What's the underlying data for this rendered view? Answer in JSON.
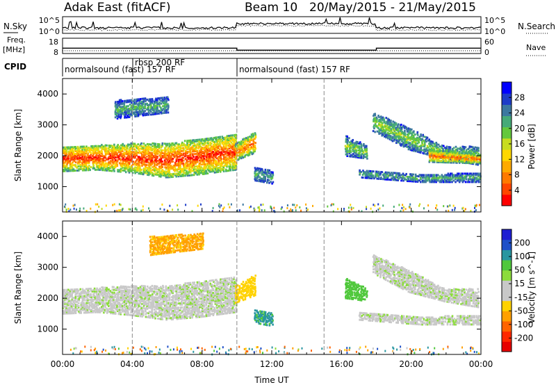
{
  "header": {
    "station": "Adak East (fitACF)",
    "beam": "Beam 10",
    "dates": "20/May/2015 - 21/May/2015"
  },
  "noise_panel": {
    "left_label": "N.Sky",
    "right_label": "N.Search",
    "left_ticks": [
      "10^5",
      "10^0"
    ],
    "right_ticks": [
      "10^5",
      "10^0"
    ]
  },
  "freq_panel": {
    "left_label_1": "Freq.",
    "left_label_2": "[MHz]",
    "right_label": "Nave",
    "left_ticks": [
      "18",
      "8"
    ],
    "right_ticks": [
      "60",
      "0"
    ],
    "freq_steps": [
      {
        "t0": 0,
        "t1": 10,
        "freq": 11.5
      },
      {
        "t0": 10,
        "t1": 18,
        "freq": 10.2
      },
      {
        "t0": 18,
        "t1": 24,
        "freq": 11.5
      }
    ]
  },
  "cpid_panel": {
    "label": "CPID",
    "segments": [
      {
        "t": 0,
        "text": "normalsound (fast) 157 RF"
      },
      {
        "t": 4,
        "text": "rbsp 200 RF"
      },
      {
        "t": 4,
        "text": "157 RF"
      },
      {
        "t": 10,
        "text": "normalsound (fast) 157 RF"
      }
    ]
  },
  "colorbars": {
    "power": {
      "label": "Power [dB]",
      "ticks": [
        "28",
        "24",
        "20",
        "16",
        "12",
        "8",
        "4"
      ],
      "colors": [
        "#0000ff",
        "#1e3cc8",
        "#3c78a0",
        "#46aa78",
        "#64c83c",
        "#c8dc1e",
        "#ffd700",
        "#ffaa00",
        "#ff7a00",
        "#ff4600",
        "#ff0000"
      ]
    },
    "velocity": {
      "label": "Velocity [m s^-1]",
      "ticks": [
        "200",
        "100",
        "50",
        "15",
        "-15",
        "-50",
        "-100",
        "-200"
      ],
      "colors": [
        "#1e1ed2",
        "#1e50c8",
        "#2896a0",
        "#50c83c",
        "#8cdc3c",
        "#c8c8c8",
        "#c8c8c8",
        "#ffd200",
        "#ffa000",
        "#ff6400",
        "#ff2800",
        "#e60000"
      ]
    }
  },
  "chart_data": [
    {
      "type": "heatmap",
      "title": "Power",
      "ylabel": "Slant Range [km]",
      "xlabel": "Time UT",
      "xlim": [
        0,
        24
      ],
      "ylim": [
        180,
        4500
      ],
      "yticks": [
        "1000",
        "2000",
        "3000",
        "4000"
      ],
      "xticks": [
        "00:00",
        "04:00",
        "08:00",
        "12:00",
        "16:00",
        "20:00",
        "00:00"
      ],
      "dashed_times": [
        4,
        10,
        15
      ],
      "bands": [
        {
          "t0": 0.0,
          "t1": 9.9,
          "r_lo": [
            1500,
            1550,
            1450,
            1300,
            1400,
            1550
          ],
          "r_hi": [
            2300,
            2350,
            2400,
            2400,
            2550,
            2700
          ],
          "p": 20
        },
        {
          "t0": 9.9,
          "t1": 11.0,
          "r_lo": [
            1850,
            2100
          ],
          "r_hi": [
            2400,
            2750
          ],
          "p": 18
        },
        {
          "t0": 11.0,
          "t1": 12.0,
          "r_lo": [
            1200,
            1100
          ],
          "r_hi": [
            1650,
            1500
          ],
          "p": 8
        },
        {
          "t0": 16.2,
          "t1": 17.5,
          "r_lo": [
            2000,
            1900
          ],
          "r_hi": [
            2650,
            2300
          ],
          "p": 10
        },
        {
          "t0": 17.8,
          "t1": 23.9,
          "r_lo": [
            2800,
            2200,
            1900,
            1700
          ],
          "r_hi": [
            3400,
            2900,
            2300,
            2300
          ],
          "p": 10
        },
        {
          "t0": 17.0,
          "t1": 24.0,
          "r_lo": [
            1300,
            1150,
            1150
          ],
          "r_hi": [
            1550,
            1400,
            1450
          ],
          "p": 8
        },
        {
          "t0": 21.0,
          "t1": 24.0,
          "r_lo": [
            1800,
            1750
          ],
          "r_hi": [
            2200,
            2050
          ],
          "p": 18
        },
        {
          "t0": 3.0,
          "t1": 6.0,
          "r_lo": [
            3200,
            3400
          ],
          "r_hi": [
            3800,
            3900
          ],
          "p": 8
        }
      ]
    },
    {
      "type": "heatmap",
      "title": "Velocity",
      "ylabel": "Slant Range [km]",
      "xlabel": "Time UT",
      "xlim": [
        0,
        24
      ],
      "ylim": [
        180,
        4500
      ],
      "yticks": [
        "1000",
        "2000",
        "3000",
        "4000"
      ],
      "xticks": [
        "00:00",
        "04:00",
        "08:00",
        "12:00",
        "16:00",
        "20:00",
        "00:00"
      ],
      "dashed_times": [
        4,
        10,
        15
      ],
      "bands": [
        {
          "t0": 0.0,
          "t1": 9.9,
          "r_lo": [
            1500,
            1550,
            1450,
            1300,
            1400,
            1550
          ],
          "r_hi": [
            2300,
            2350,
            2400,
            2400,
            2550,
            2700
          ],
          "v": 0
        },
        {
          "t0": 9.9,
          "t1": 11.0,
          "r_lo": [
            1850,
            2100
          ],
          "r_hi": [
            2400,
            2750
          ],
          "v": -40
        },
        {
          "t0": 11.0,
          "t1": 12.0,
          "r_lo": [
            1200,
            1100
          ],
          "r_hi": [
            1650,
            1500
          ],
          "v": 60
        },
        {
          "t0": 16.2,
          "t1": 17.5,
          "r_lo": [
            2000,
            1900
          ],
          "r_hi": [
            2650,
            2300
          ],
          "v": 40
        },
        {
          "t0": 17.8,
          "t1": 23.9,
          "r_lo": [
            2800,
            2200,
            1900,
            1700
          ],
          "r_hi": [
            3400,
            2900,
            2300,
            2300
          ],
          "v": 0
        },
        {
          "t0": 17.0,
          "t1": 24.0,
          "r_lo": [
            1300,
            1150,
            1150
          ],
          "r_hi": [
            1550,
            1400,
            1450
          ],
          "v": 0
        },
        {
          "t0": 5.0,
          "t1": 8.0,
          "r_lo": [
            3400,
            3600
          ],
          "r_hi": [
            4000,
            4100
          ],
          "v": -60
        }
      ]
    }
  ]
}
